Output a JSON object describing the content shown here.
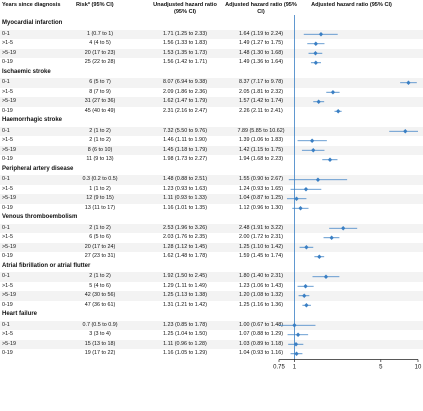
{
  "headers": {
    "years": "Years since diagnosis",
    "risk": "Risk* (95% CI)",
    "unadj": "Unadjusted hazard ratio (95% CI)",
    "adj": "Adjusted hazard ratio (95% CI)",
    "plot": "Adjusted hazard ratio (95% CI)"
  },
  "colors": {
    "accent": "#3a7fc4",
    "refline": "#3a7fc4",
    "band": "#f3f3f3"
  },
  "chart_data": {
    "type": "forest",
    "x_scale": "log",
    "xlim": [
      0.75,
      10
    ],
    "xticks": [
      "0.75",
      "1",
      "5",
      "10"
    ],
    "reference_line": 1,
    "groups": [
      {
        "name": "Myocardial infarction",
        "rows": [
          {
            "period": "0-1",
            "risk": "1 (0.7 to 1)",
            "unadj": "1.71 (1.25 to 2.33)",
            "adj": "1.64 (1.19 to 2.24)",
            "hr": 1.64,
            "lo": 1.19,
            "hi": 2.24
          },
          {
            "period": ">1-5",
            "risk": "4 (4 to 5)",
            "unadj": "1.56 (1.33 to 1.83)",
            "adj": "1.49 (1.27 to 1.75)",
            "hr": 1.49,
            "lo": 1.27,
            "hi": 1.75
          },
          {
            "period": ">5-19",
            "risk": "20 (17 to 23)",
            "unadj": "1.53 (1.35 to 1.73)",
            "adj": "1.48 (1.30 to 1.68)",
            "hr": 1.48,
            "lo": 1.3,
            "hi": 1.68
          },
          {
            "period": "0-19",
            "risk": "25 (22 to 28)",
            "unadj": "1.56 (1.42 to 1.71)",
            "adj": "1.49 (1.36 to 1.64)",
            "hr": 1.49,
            "lo": 1.36,
            "hi": 1.64
          }
        ]
      },
      {
        "name": "Ischaemic stroke",
        "rows": [
          {
            "period": "0-1",
            "risk": "6 (5 to 7)",
            "unadj": "8.07 (6.94 to 9.38)",
            "adj": "8.37 (7.17 to 9.78)",
            "hr": 8.37,
            "lo": 7.17,
            "hi": 9.78
          },
          {
            "period": ">1-5",
            "risk": "8 (7 to 9)",
            "unadj": "2.09 (1.86 to 2.36)",
            "adj": "2.05 (1.81 to 2.32)",
            "hr": 2.05,
            "lo": 1.81,
            "hi": 2.32
          },
          {
            "period": ">5-19",
            "risk": "31 (27 to 36)",
            "unadj": "1.62 (1.47 to 1.79)",
            "adj": "1.57 (1.42 to 1.74)",
            "hr": 1.57,
            "lo": 1.42,
            "hi": 1.74
          },
          {
            "period": "0-19",
            "risk": "45 (40 to 49)",
            "unadj": "2.31 (2.16 to 2.47)",
            "adj": "2.26 (2.11 to 2.41)",
            "hr": 2.26,
            "lo": 2.11,
            "hi": 2.41
          }
        ]
      },
      {
        "name": "Haemorrhagic stroke",
        "rows": [
          {
            "period": "0-1",
            "risk": "2 (1 to 2)",
            "unadj": "7.32 (5.50 to 9.76)",
            "adj": "7.89 (5.85 to 10.62)",
            "hr": 7.89,
            "lo": 5.85,
            "hi": 10.62
          },
          {
            "period": ">1-5",
            "risk": "2 (1 to 2)",
            "unadj": "1.46 (1.11 to 1.90)",
            "adj": "1.39 (1.06 to 1.83)",
            "hr": 1.39,
            "lo": 1.06,
            "hi": 1.83
          },
          {
            "period": ">5-19",
            "risk": "8 (6 to 10)",
            "unadj": "1.45 (1.18 to 1.79)",
            "adj": "1.42 (1.15 to 1.75)",
            "hr": 1.42,
            "lo": 1.15,
            "hi": 1.75
          },
          {
            "period": "0-19",
            "risk": "11 (9 to 13)",
            "unadj": "1.98 (1.73 to 2.27)",
            "adj": "1.94 (1.68 to 2.23)",
            "hr": 1.94,
            "lo": 1.68,
            "hi": 2.23
          }
        ]
      },
      {
        "name": "Peripheral artery disease",
        "rows": [
          {
            "period": "0-1",
            "risk": "0.3 (0.2 to 0.5)",
            "unadj": "1.48 (0.88 to 2.51)",
            "adj": "1.55 (0.90 to 2.67)",
            "hr": 1.55,
            "lo": 0.9,
            "hi": 2.67
          },
          {
            "period": ">1-5",
            "risk": "1 (1 to 2)",
            "unadj": "1.23 (0.93 to 1.63)",
            "adj": "1.24 (0.93 to 1.65)",
            "hr": 1.24,
            "lo": 0.93,
            "hi": 1.65
          },
          {
            "period": ">5-19",
            "risk": "12 (9 to 15)",
            "unadj": "1.11 (0.93 to 1.33)",
            "adj": "1.04 (0.87 to 1.25)",
            "hr": 1.04,
            "lo": 0.87,
            "hi": 1.25
          },
          {
            "period": "0-19",
            "risk": "13 (11 to 17)",
            "unadj": "1.16 (1.01 to 1.35)",
            "adj": "1.12 (0.96 to 1.30)",
            "hr": 1.12,
            "lo": 0.96,
            "hi": 1.3
          }
        ]
      },
      {
        "name": "Venous thromboembolism",
        "rows": [
          {
            "period": "0-1",
            "risk": "2 (1 to 2)",
            "unadj": "2.53 (1.96 to 3.26)",
            "adj": "2.48 (1.91 to 3.22)",
            "hr": 2.48,
            "lo": 1.91,
            "hi": 3.22
          },
          {
            "period": ">1-5",
            "risk": "6 (5 to 6)",
            "unadj": "2.03 (1.76 to 2.35)",
            "adj": "2.00 (1.72 to 2.31)",
            "hr": 2.0,
            "lo": 1.72,
            "hi": 2.31
          },
          {
            "period": ">5-19",
            "risk": "20 (17 to 24)",
            "unadj": "1.28 (1.12 to 1.45)",
            "adj": "1.25 (1.10 to 1.42)",
            "hr": 1.25,
            "lo": 1.1,
            "hi": 1.42
          },
          {
            "period": "0-19",
            "risk": "27 (23 to 31)",
            "unadj": "1.62 (1.48 to 1.78)",
            "adj": "1.59 (1.45 to 1.74)",
            "hr": 1.59,
            "lo": 1.45,
            "hi": 1.74
          }
        ]
      },
      {
        "name": "Atrial fibrillation or atrial flutter",
        "rows": [
          {
            "period": "0-1",
            "risk": "2 (1 to 2)",
            "unadj": "1.92 (1.50 to 2.45)",
            "adj": "1.80 (1.40 to 2.31)",
            "hr": 1.8,
            "lo": 1.4,
            "hi": 2.31
          },
          {
            "period": ">1-5",
            "risk": "5 (4 to 6)",
            "unadj": "1.29 (1.11 to 1.49)",
            "adj": "1.23 (1.06 to 1.43)",
            "hr": 1.23,
            "lo": 1.06,
            "hi": 1.43
          },
          {
            "period": ">5-19",
            "risk": "42 (30 to 56)",
            "unadj": "1.25 (1.13 to 1.38)",
            "adj": "1.20 (1.08 to 1.32)",
            "hr": 1.2,
            "lo": 1.08,
            "hi": 1.32
          },
          {
            "period": "0-19",
            "risk": "47 (36 to 61)",
            "unadj": "1.31 (1.21 to 1.42)",
            "adj": "1.25 (1.16 to 1.36)",
            "hr": 1.25,
            "lo": 1.16,
            "hi": 1.36
          }
        ]
      },
      {
        "name": "Heart failure",
        "rows": [
          {
            "period": "0-1",
            "risk": "0.7 (0.5 to 0.9)",
            "unadj": "1.23 (0.85 to 1.78)",
            "adj": "1.00 (0.67 to 1.48)",
            "hr": 1.0,
            "lo": 0.67,
            "hi": 1.48
          },
          {
            "period": ">1-5",
            "risk": "3 (3 to 4)",
            "unadj": "1.25 (1.04 to 1.50)",
            "adj": "1.07 (0.88 to 1.29)",
            "hr": 1.07,
            "lo": 0.88,
            "hi": 1.29
          },
          {
            "period": ">5-19",
            "risk": "15 (13 to 18)",
            "unadj": "1.11 (0.96 to 1.28)",
            "adj": "1.03 (0.89 to 1.18)",
            "hr": 1.03,
            "lo": 0.89,
            "hi": 1.18
          },
          {
            "period": "0-19",
            "risk": "19 (17 to 22)",
            "unadj": "1.16 (1.05 to 1.29)",
            "adj": "1.04 (0.93 to 1.16)",
            "hr": 1.04,
            "lo": 0.93,
            "hi": 1.16
          }
        ]
      }
    ]
  }
}
